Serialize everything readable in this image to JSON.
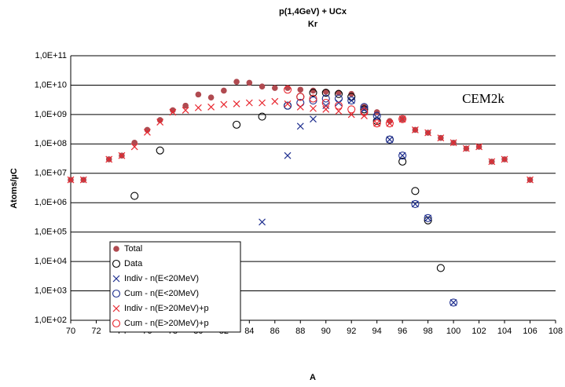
{
  "chart_data": {
    "type": "scatter",
    "title": "p(1,4GeV) + UCx",
    "subtitle": "Kr",
    "x_label": "A",
    "y_label": "Atoms/µC",
    "annotation": "CEM2k",
    "log_y": true,
    "grid": true,
    "xlim": [
      70,
      108
    ],
    "xticks": [
      70,
      72,
      74,
      76,
      78,
      80,
      82,
      84,
      86,
      88,
      90,
      92,
      94,
      96,
      98,
      100,
      102,
      104,
      106,
      108
    ],
    "ylim": [
      100,
      100000000000
    ],
    "yticks": [
      {
        "value": 100,
        "label": "1,0E+02"
      },
      {
        "value": 1000,
        "label": "1,0E+03"
      },
      {
        "value": 10000,
        "label": "1,0E+04"
      },
      {
        "value": 100000,
        "label": "1,0E+05"
      },
      {
        "value": 1000000,
        "label": "1,0E+06"
      },
      {
        "value": 10000000,
        "label": "1,0E+07"
      },
      {
        "value": 100000000,
        "label": "1,0E+08"
      },
      {
        "value": 1000000000,
        "label": "1,0E+09"
      },
      {
        "value": 10000000000,
        "label": "1,0E+10"
      },
      {
        "value": 100000000000,
        "label": "1,0E+11"
      }
    ],
    "series": [
      {
        "name": "Total",
        "color": "#b04a50",
        "marker": "filled-circle",
        "x": [
          70,
          71,
          73,
          74,
          75,
          76,
          77,
          78,
          79,
          80,
          81,
          82,
          83,
          84,
          85,
          86,
          87,
          88,
          89,
          90,
          91,
          92,
          93,
          94,
          95,
          96,
          97,
          98,
          99,
          100,
          101,
          102,
          103,
          104,
          106
        ],
        "values": [
          6000000,
          6000000,
          30000000,
          40000000,
          110000000,
          300000000,
          650000000,
          1400000000,
          2000000000,
          4800000000,
          3800000000,
          6500000000,
          13000000000,
          12000000000,
          9000000000,
          8000000000,
          8000000000,
          7000000000,
          6500000000,
          6000000000,
          5500000000,
          5000000000,
          1800000000,
          1200000000,
          600000000,
          700000000,
          300000000,
          240000000,
          160000000,
          110000000,
          70000000,
          80000000,
          25000000,
          30000000,
          6000000
        ]
      },
      {
        "name": "Data",
        "color": "#000000",
        "marker": "circle",
        "x": [
          75,
          77,
          83,
          85,
          87,
          88,
          89,
          90,
          91,
          92,
          93,
          94,
          95,
          96,
          97,
          98,
          99
        ],
        "values": [
          1700000,
          60000000,
          450000000,
          850000000,
          2000000000,
          4000000000,
          5500000000,
          5500000000,
          5000000000,
          4000000000,
          1500000000,
          600000000,
          140000000,
          25000000,
          2500000,
          250000,
          6000
        ]
      },
      {
        "name": "Indiv - n(E<20MeV)",
        "color": "#1f2f8f",
        "marker": "x",
        "x": [
          85,
          87,
          88,
          89,
          90,
          91,
          92,
          93,
          94,
          95,
          96,
          97,
          98,
          100
        ],
        "values": [
          220000,
          40000000,
          400000000,
          700000000,
          2000000000,
          2500000000,
          3000000000,
          1500000000,
          800000000,
          140000000,
          40000000,
          900000,
          300000,
          400
        ]
      },
      {
        "name": "Cum - n(E<20MeV)",
        "color": "#1f2f8f",
        "marker": "circle",
        "x": [
          87,
          88,
          89,
          90,
          91,
          92,
          93,
          94,
          95,
          96,
          97,
          98,
          100
        ],
        "values": [
          2000000000,
          2500000000,
          3000000000,
          3500000000,
          3500000000,
          3000000000,
          1800000000,
          900000000,
          140000000,
          40000000,
          900000,
          300000,
          400
        ]
      },
      {
        "name": "Indiv - n(E>20MeV)+p",
        "color": "#e8262e",
        "marker": "x",
        "x": [
          70,
          71,
          73,
          74,
          75,
          76,
          77,
          78,
          79,
          80,
          81,
          82,
          83,
          84,
          85,
          86,
          87,
          88,
          89,
          90,
          91,
          92,
          93,
          94,
          95,
          96,
          97,
          98,
          99,
          100,
          101,
          102,
          103,
          104,
          106
        ],
        "values": [
          6000000,
          6000000,
          30000000,
          40000000,
          80000000,
          250000000,
          550000000,
          1200000000,
          1400000000,
          1700000000,
          1800000000,
          2200000000,
          2300000000,
          2500000000,
          2500000000,
          2800000000,
          2300000000,
          1800000000,
          1600000000,
          1500000000,
          1300000000,
          1000000000,
          900000000,
          500000000,
          500000000,
          700000000,
          300000000,
          240000000,
          160000000,
          110000000,
          70000000,
          80000000,
          25000000,
          30000000,
          6000000
        ]
      },
      {
        "name": "Cum - n(E>20MeV)+p",
        "color": "#e8262e",
        "marker": "circle",
        "x": [
          87,
          88,
          89,
          90,
          91,
          92,
          93,
          94,
          95,
          96
        ],
        "values": [
          7000000000,
          4000000000,
          3500000000,
          2500000000,
          2000000000,
          1500000000,
          1200000000,
          500000000,
          500000000,
          700000000
        ]
      }
    ]
  }
}
